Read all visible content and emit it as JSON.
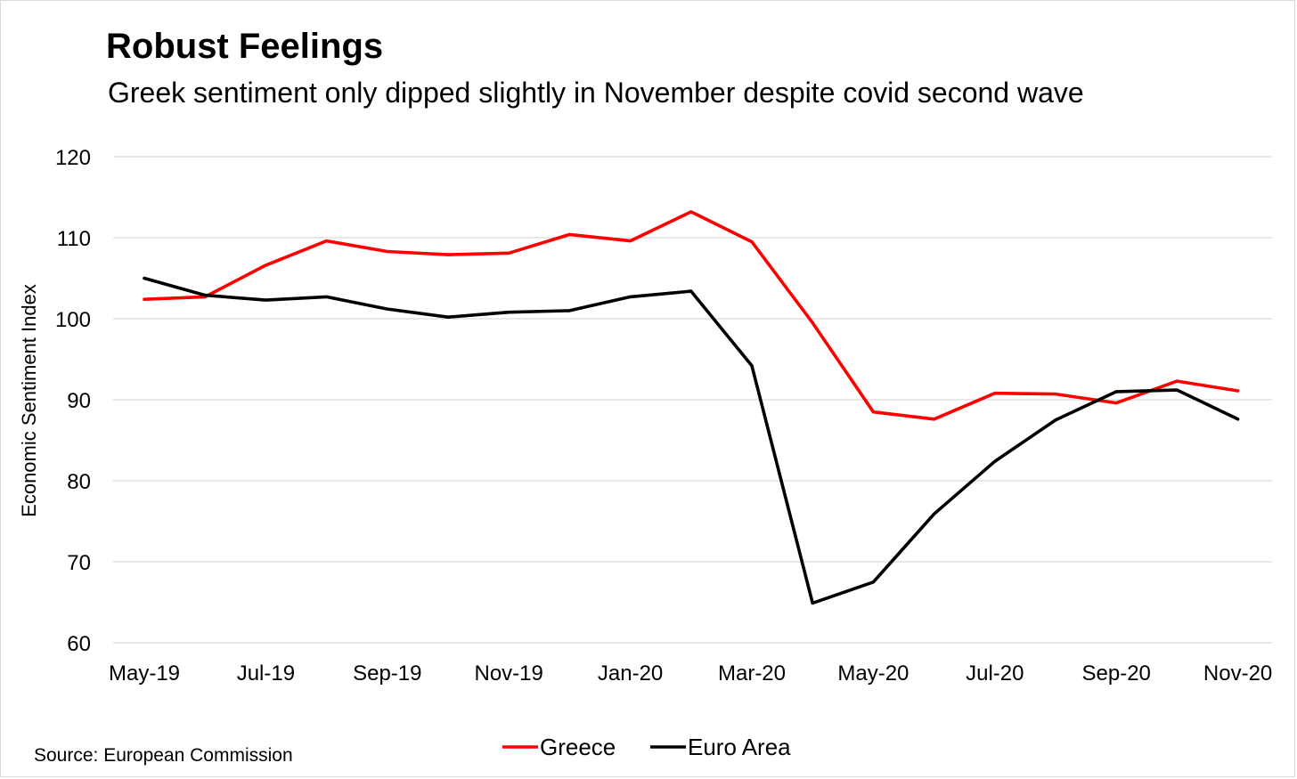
{
  "title": "Robust Feelings",
  "subtitle": "Greek sentiment only dipped slightly in November despite covid second wave",
  "source": "Source: European Commission",
  "colors": {
    "greece": "#ff0000",
    "euro_area": "#000000",
    "grid": "#d9d9d9"
  },
  "chart_data": {
    "type": "line",
    "title": "Robust Feelings",
    "subtitle": "Greek sentiment only dipped slightly in November despite covid second wave",
    "xlabel": "",
    "ylabel": "Economic Sentiment Index",
    "ylim": [
      60,
      120
    ],
    "yticks": [
      60,
      70,
      80,
      90,
      100,
      110,
      120
    ],
    "grid": true,
    "legend": "bottom",
    "categories": [
      "May-19",
      "Jun-19",
      "Jul-19",
      "Aug-19",
      "Sep-19",
      "Oct-19",
      "Nov-19",
      "Dec-19",
      "Jan-20",
      "Feb-20",
      "Mar-20",
      "Apr-20",
      "May-20",
      "Jun-20",
      "Jul-20",
      "Aug-20",
      "Sep-20",
      "Oct-20",
      "Nov-20"
    ],
    "xtick_labels": [
      "May-19",
      "Jul-19",
      "Sep-19",
      "Nov-19",
      "Jan-20",
      "Mar-20",
      "May-20",
      "Jul-20",
      "Sep-20",
      "Nov-20"
    ],
    "series": [
      {
        "name": "Greece",
        "color": "#ff0000",
        "values": [
          102.4,
          102.7,
          106.6,
          109.6,
          108.3,
          107.9,
          108.1,
          110.4,
          109.6,
          113.2,
          109.5,
          99.5,
          88.5,
          87.6,
          90.8,
          90.7,
          89.6,
          92.3,
          91.1
        ]
      },
      {
        "name": "Euro Area",
        "color": "#000000",
        "values": [
          105.0,
          102.9,
          102.3,
          102.7,
          101.2,
          100.2,
          100.8,
          101.0,
          102.7,
          103.4,
          94.2,
          64.9,
          67.5,
          75.9,
          82.4,
          87.5,
          91.0,
          91.2,
          87.6
        ]
      }
    ]
  }
}
